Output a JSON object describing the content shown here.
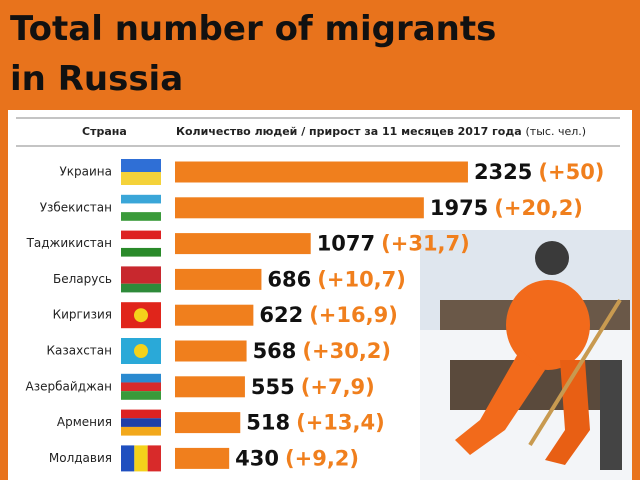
{
  "chart_data": {
    "type": "bar",
    "title": "Total number of migrants in Russia",
    "column_headers": [
      "Страна",
      "Количество людей / прирост за 11 месяцев 2017 года",
      "(тыс. чел.)"
    ],
    "categories": [
      "Украина",
      "Узбекистан",
      "Таджикистан",
      "Беларусь",
      "Киргизия",
      "Казахстан",
      "Азербайджан",
      "Армения",
      "Молдавия"
    ],
    "values": [
      2325,
      1975,
      1077,
      686,
      622,
      568,
      555,
      518,
      430
    ],
    "growth_labels": [
      "(+50)",
      "(+20,2)",
      "(+31,7)",
      "(+10,7)",
      "(+16,9)",
      "(+30,2)",
      "(+7,9)",
      "(+13,4)",
      "(+9,2)"
    ],
    "color": "#f07f1d"
  }
}
